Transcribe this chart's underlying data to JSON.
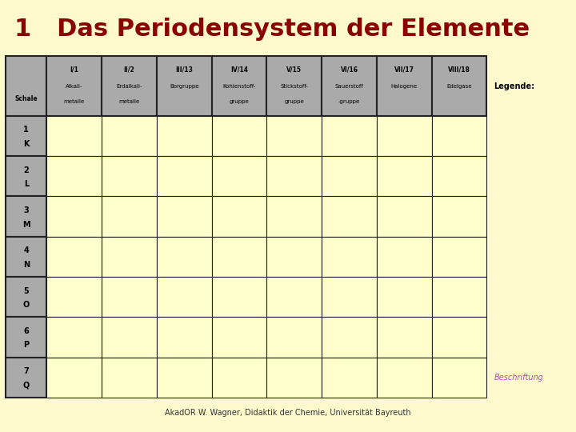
{
  "title": "1   Das Periodensystem der Elemente",
  "title_color": "#8B0000",
  "title_bg": "#FFFACD",
  "title_fontsize": 22,
  "page_bg": "#FFFACD",
  "header_bg": "#AAAAAA",
  "header_border": "#222222",
  "cell_bg": "#FFFFCC",
  "cell_border": "#222222",
  "col_headers_line1": [
    "I/1",
    "II/2",
    "III/13",
    "IV/14",
    "V/15",
    "VI/16",
    "VII/17",
    "VIII/18"
  ],
  "col_headers_line2": [
    "Alkali-",
    "Erdalkali-",
    "Borgruppe",
    "Kohlenstoff-",
    "Stickstoff-",
    "Sauerstoff",
    "Halogene",
    "Edelgase"
  ],
  "col_headers_line3": [
    "metalle",
    "metalle",
    "",
    "gruppe",
    "gruppe",
    "-gruppe",
    "",
    ""
  ],
  "row_headers": [
    "1\nK",
    "2\nL",
    "3\nM",
    "4\nN",
    "5\nO",
    "6\nP",
    "7\nQ"
  ],
  "schale_label": "Schale",
  "legende_label": "Legende:",
  "beschriftung_label": "Beschriftung",
  "beschriftung_color": "#BB44BB",
  "footer_text": "AkadOR W. Wagner, Didaktik der Chemie, Universität Bayreuth",
  "footer_color": "#333333",
  "n_cols": 8,
  "n_rows": 7
}
